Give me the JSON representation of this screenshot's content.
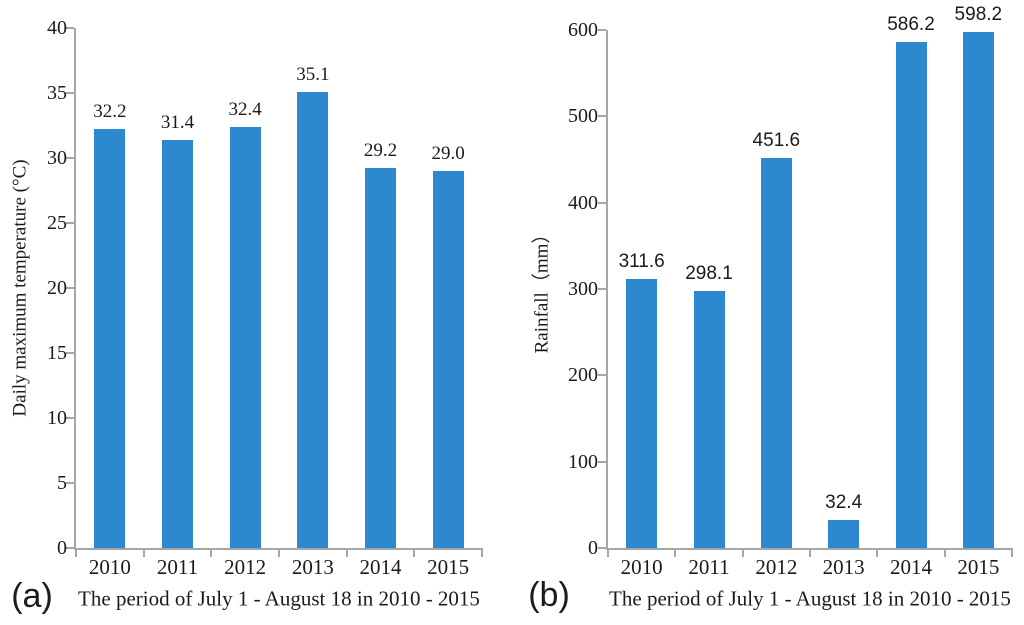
{
  "colors": {
    "bar": "#2C89CF",
    "axis": "#A6A6A6",
    "text": "#1B1B1B"
  },
  "chart_data": [
    {
      "type": "bar",
      "panel_label": "(a)",
      "categories": [
        "2010",
        "2011",
        "2012",
        "2013",
        "2014",
        "2015"
      ],
      "values": [
        32.2,
        31.4,
        32.4,
        35.1,
        29.2,
        29.0
      ],
      "value_labels": [
        "32.2",
        "31.4",
        "32.4",
        "35.1",
        "29.2",
        "29.0"
      ],
      "ylabel": "Daily maximum temperature (°C)",
      "xlabel": "The period of July 1 - August 18 in 2010 - 2015",
      "ylim": [
        0,
        40
      ],
      "yticks": [
        "0",
        "5",
        "10",
        "15",
        "20",
        "25",
        "30",
        "35",
        "40"
      ],
      "grid": false,
      "legend": false
    },
    {
      "type": "bar",
      "panel_label": "(b)",
      "categories": [
        "2010",
        "2011",
        "2012",
        "2013",
        "2014",
        "2015"
      ],
      "values": [
        311.6,
        298.1,
        451.6,
        32.4,
        586.2,
        598.2
      ],
      "value_labels": [
        "311.6",
        "298.1",
        "451.6",
        "32.4",
        "586.2",
        "598.2"
      ],
      "ylabel": "Rainfall（mm）",
      "xlabel": "The period of July 1 - August 18 in 2010 - 2015",
      "ylim": [
        0,
        600
      ],
      "yticks": [
        "0",
        "100",
        "200",
        "300",
        "400",
        "500",
        "600"
      ],
      "grid": false,
      "legend": false
    }
  ]
}
